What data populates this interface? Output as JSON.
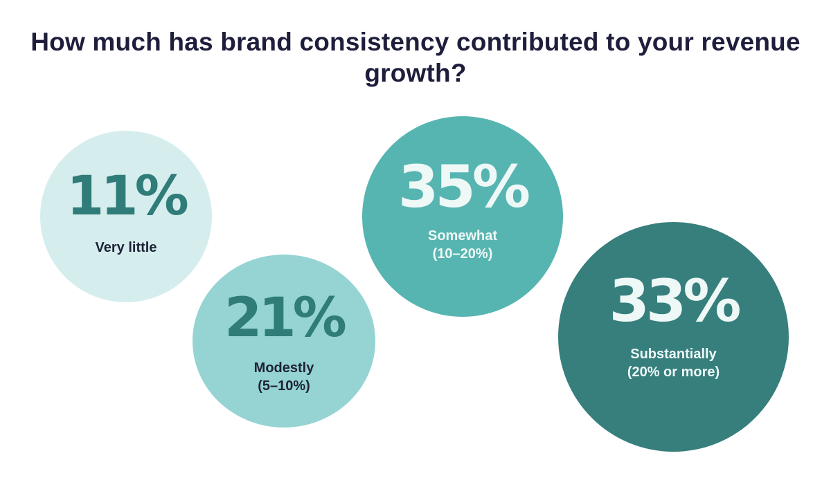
{
  "chart_data": {
    "type": "bubble",
    "title": "How much has brand consistency contributed to your revenue growth?",
    "unit": "%",
    "points": [
      {
        "value": 11,
        "display": "11%",
        "label": "Very little",
        "color": "#d5eeed",
        "text_color": "#2f7c78",
        "label_color": "#1e2238"
      },
      {
        "value": 21,
        "display": "21%",
        "label": "Modestly\n(5–10%)",
        "color": "#95d4d3",
        "text_color": "#2f7c78",
        "label_color": "#1e2238"
      },
      {
        "value": 35,
        "display": "35%",
        "label": "Somewhat\n(10–20%)",
        "color": "#57b5b1",
        "text_color": "#eef8f7",
        "label_color": "#eef8f7"
      },
      {
        "value": 33,
        "display": "33%",
        "label": "Substantially\n(20% or more)",
        "color": "#367f7d",
        "text_color": "#eef8f7",
        "label_color": "#eef8f7"
      }
    ]
  }
}
